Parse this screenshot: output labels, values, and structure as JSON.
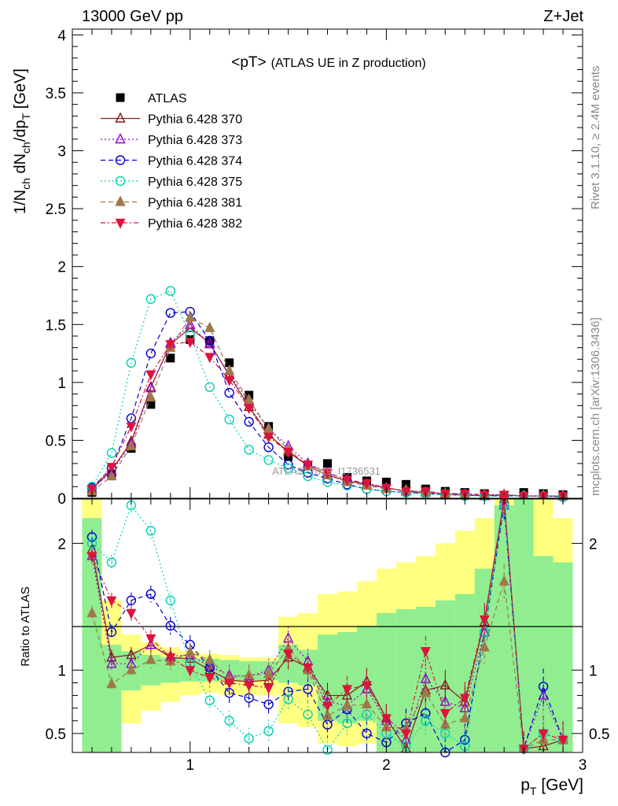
{
  "header": {
    "left": "13000 GeV pp",
    "right": "Z+Jet",
    "side_top": "Rivet 3.1.10, ≥ 2.4M events",
    "side_bottom": "mcplots.cern.ch [arXiv:1306.3436]",
    "watermark": "ATLAS_2019_I1736531"
  },
  "chart_data": [
    {
      "type": "scatter",
      "title": "<pT> (ATLAS UE in Z production)",
      "title_main": "<pT>",
      "title_sub": "(ATLAS UE in Z production)",
      "ylabel": "1/N_ch dN_ch/dp_T [GeV]",
      "xlim": [
        0.4,
        3.0
      ],
      "ylim": [
        0,
        4.05
      ],
      "yticks": [
        "0",
        "0.5",
        "1",
        "1.5",
        "2",
        "2.5",
        "3",
        "3.5",
        "4"
      ],
      "yticks_values": [
        0,
        0.5,
        1,
        1.5,
        2,
        2.5,
        3,
        3.5,
        4
      ],
      "legend_position": "top-left",
      "x": [
        0.5,
        0.6,
        0.7,
        0.8,
        0.9,
        1.0,
        1.1,
        1.2,
        1.3,
        1.4,
        1.5,
        1.6,
        1.7,
        1.8,
        1.9,
        2.0,
        2.1,
        2.2,
        2.3,
        2.4,
        2.5,
        2.6,
        2.7,
        2.8,
        2.9
      ],
      "series": [
        {
          "name": "ATLAS",
          "color": "#000000",
          "marker": "square",
          "values": [
            0.05,
            0.21,
            0.43,
            0.81,
            1.21,
            1.37,
            1.36,
            1.17,
            0.89,
            0.62,
            0.36,
            0.28,
            0.3,
            0.18,
            0.15,
            0.14,
            0.12,
            0.08,
            0.06,
            0.05,
            0.04,
            0.02,
            0.05,
            0.04,
            0.03
          ]
        },
        {
          "name": "Pythia 6.428 370",
          "color": "#8b1a1a",
          "marker": "triangle-open",
          "values": [
            0.08,
            0.24,
            0.49,
            0.96,
            1.33,
            1.47,
            1.34,
            1.06,
            0.79,
            0.55,
            0.4,
            0.28,
            0.2,
            0.15,
            0.12,
            0.09,
            0.06,
            0.05,
            0.04,
            0.03,
            0.02,
            0.03,
            0.02,
            0.02,
            0.02
          ]
        },
        {
          "name": "Pythia 6.428 373",
          "color": "#9400d3",
          "marker": "triangle-open",
          "values": [
            0.08,
            0.23,
            0.47,
            0.95,
            1.34,
            1.5,
            1.33,
            1.07,
            0.83,
            0.6,
            0.45,
            0.3,
            0.22,
            0.16,
            0.12,
            0.09,
            0.06,
            0.05,
            0.04,
            0.03,
            0.02,
            0.03,
            0.02,
            0.02,
            0.02
          ]
        },
        {
          "name": "Pythia 6.428 374",
          "color": "#0000cd",
          "marker": "circle-open",
          "values": [
            0.09,
            0.26,
            0.69,
            1.25,
            1.6,
            1.61,
            1.36,
            0.91,
            0.66,
            0.44,
            0.29,
            0.22,
            0.17,
            0.12,
            0.08,
            0.06,
            0.05,
            0.04,
            0.03,
            0.03,
            0.02,
            0.02,
            0.02,
            0.02,
            0.01
          ]
        },
        {
          "name": "Pythia 6.428 375",
          "color": "#00d2b4",
          "marker": "circle-open",
          "values": [
            0.1,
            0.39,
            1.17,
            1.72,
            1.79,
            1.41,
            0.96,
            0.68,
            0.42,
            0.33,
            0.26,
            0.19,
            0.14,
            0.11,
            0.08,
            0.06,
            0.05,
            0.04,
            0.03,
            0.02,
            0.02,
            0.02,
            0.02,
            0.02,
            0.01
          ]
        },
        {
          "name": "Pythia 6.428 381",
          "color": "#a0784b",
          "marker": "triangle-filled",
          "values": [
            0.06,
            0.19,
            0.45,
            0.87,
            1.3,
            1.56,
            1.47,
            1.1,
            0.85,
            0.6,
            0.42,
            0.28,
            0.2,
            0.14,
            0.11,
            0.08,
            0.07,
            0.05,
            0.04,
            0.03,
            0.03,
            0.03,
            0.02,
            0.02,
            0.02
          ]
        },
        {
          "name": "Pythia 6.428 382",
          "color": "#dc143c",
          "marker": "triangle-down-filled",
          "values": [
            0.08,
            0.27,
            0.62,
            1.07,
            1.33,
            1.35,
            1.22,
            1.02,
            0.78,
            0.53,
            0.4,
            0.29,
            0.22,
            0.16,
            0.13,
            0.09,
            0.06,
            0.06,
            0.04,
            0.04,
            0.03,
            0.03,
            0.02,
            0.02,
            0.02
          ]
        }
      ]
    },
    {
      "type": "scatter",
      "ylabel": "Ratio to ATLAS",
      "xlabel": "p_T [GeV]",
      "xlim": [
        0.4,
        3.0
      ],
      "ylim": [
        0.35,
        2.35
      ],
      "xticks": [
        "1",
        "2",
        "3"
      ],
      "xticks_values": [
        1,
        2,
        3
      ],
      "yticks": [
        "0.5",
        "1",
        "2"
      ],
      "yticks_values": [
        0.5,
        1,
        2
      ],
      "band_edges": [
        0.45,
        0.55,
        0.65,
        0.75,
        0.85,
        0.95,
        1.05,
        1.15,
        1.25,
        1.35,
        1.45,
        1.55,
        1.65,
        1.75,
        1.85,
        1.95,
        2.05,
        2.15,
        2.25,
        2.35,
        2.45,
        2.55,
        2.65,
        2.75,
        2.85,
        2.95
      ],
      "green_band": {
        "lo": [
          0.35,
          0.35,
          0.84,
          0.88,
          0.9,
          0.91,
          0.91,
          0.92,
          0.92,
          0.92,
          0.9,
          0.88,
          0.6,
          0.58,
          0.6,
          0.35,
          0.35,
          0.35,
          0.35,
          0.35,
          0.35,
          0.35,
          0.35,
          0.35,
          0.35
        ],
        "hi": [
          2.2,
          1.2,
          1.15,
          1.12,
          1.1,
          1.09,
          1.09,
          1.08,
          1.07,
          1.07,
          1.2,
          1.16,
          1.28,
          1.3,
          1.35,
          1.45,
          1.48,
          1.5,
          1.55,
          1.6,
          1.8,
          2.3,
          2.35,
          1.9,
          1.85
        ]
      },
      "yellow_band": {
        "lo": [
          0.35,
          0.35,
          0.58,
          0.68,
          0.75,
          0.8,
          0.82,
          0.8,
          0.8,
          0.8,
          0.58,
          0.55,
          0.42,
          0.4,
          0.42,
          0.35,
          0.35,
          0.35,
          0.35,
          0.35,
          0.35,
          0.35,
          0.35,
          0.35,
          0.35
        ],
        "hi": [
          2.35,
          1.55,
          1.28,
          1.22,
          1.18,
          1.15,
          1.13,
          1.12,
          1.1,
          1.1,
          1.42,
          1.45,
          1.6,
          1.62,
          1.7,
          1.8,
          1.85,
          1.9,
          2.0,
          2.1,
          2.2,
          2.35,
          2.35,
          2.35,
          2.2
        ]
      },
      "reference_line": 1,
      "series": [
        {
          "name": "Pythia 6.428 370",
          "color": "#8b1a1a",
          "marker": "triangle-open",
          "values": [
            1.95,
            1.1,
            1.12,
            1.2,
            1.1,
            1.09,
            1.0,
            0.92,
            0.91,
            0.92,
            1.1,
            1.02,
            0.8,
            0.8,
            0.91,
            0.62,
            0.38,
            0.84,
            0.88,
            0.75,
            1.38,
            2.35,
            0.38,
            0.4,
            0.45
          ]
        },
        {
          "name": "Pythia 6.428 373",
          "color": "#9400d3",
          "marker": "triangle-open",
          "values": [
            1.9,
            1.05,
            1.05,
            1.2,
            1.11,
            1.12,
            1.03,
            0.96,
            0.95,
            1.0,
            1.25,
            1.07,
            0.75,
            0.72,
            0.85,
            0.6,
            0.45,
            0.93,
            0.75,
            0.7,
            1.3,
            2.3,
            0.38,
            0.8,
            0.45
          ]
        },
        {
          "name": "Pythia 6.428 374",
          "color": "#0000cd",
          "marker": "circle-open",
          "values": [
            2.05,
            1.3,
            1.55,
            1.6,
            1.35,
            1.2,
            1.02,
            0.82,
            0.78,
            0.73,
            0.83,
            0.85,
            0.57,
            0.69,
            0.5,
            0.43,
            0.58,
            0.66,
            0.35,
            0.45,
            1.3,
            2.3,
            0.38,
            0.87,
            0.45
          ]
        },
        {
          "name": "Pythia 6.428 375",
          "color": "#00d2b4",
          "marker": "circle-open",
          "values": [
            2.0,
            1.85,
            2.3,
            2.1,
            1.55,
            1.05,
            0.76,
            0.6,
            0.46,
            0.52,
            0.77,
            0.65,
            0.37,
            0.58,
            0.65,
            0.5,
            0.4,
            0.6,
            0.5,
            0.4,
            1.3,
            2.3,
            0.38,
            0.5,
            0.45
          ]
        },
        {
          "name": "Pythia 6.428 381",
          "color": "#a0784b",
          "marker": "triangle-filled",
          "values": [
            1.45,
            0.89,
            1.0,
            1.08,
            1.07,
            1.14,
            1.08,
            0.94,
            0.96,
            0.97,
            1.17,
            1.0,
            0.64,
            0.72,
            0.73,
            0.55,
            0.54,
            0.82,
            0.57,
            0.62,
            1.18,
            1.7,
            0.38,
            0.45,
            0.45
          ]
        },
        {
          "name": "Pythia 6.428 382",
          "color": "#dc143c",
          "marker": "triangle-down-filled",
          "values": [
            1.9,
            1.55,
            1.45,
            1.25,
            1.1,
            1.0,
            0.94,
            0.9,
            0.88,
            0.86,
            1.13,
            1.02,
            0.72,
            0.85,
            0.88,
            0.62,
            0.5,
            1.15,
            0.66,
            0.78,
            1.4,
            2.35,
            0.38,
            0.5,
            0.45
          ]
        }
      ]
    }
  ]
}
